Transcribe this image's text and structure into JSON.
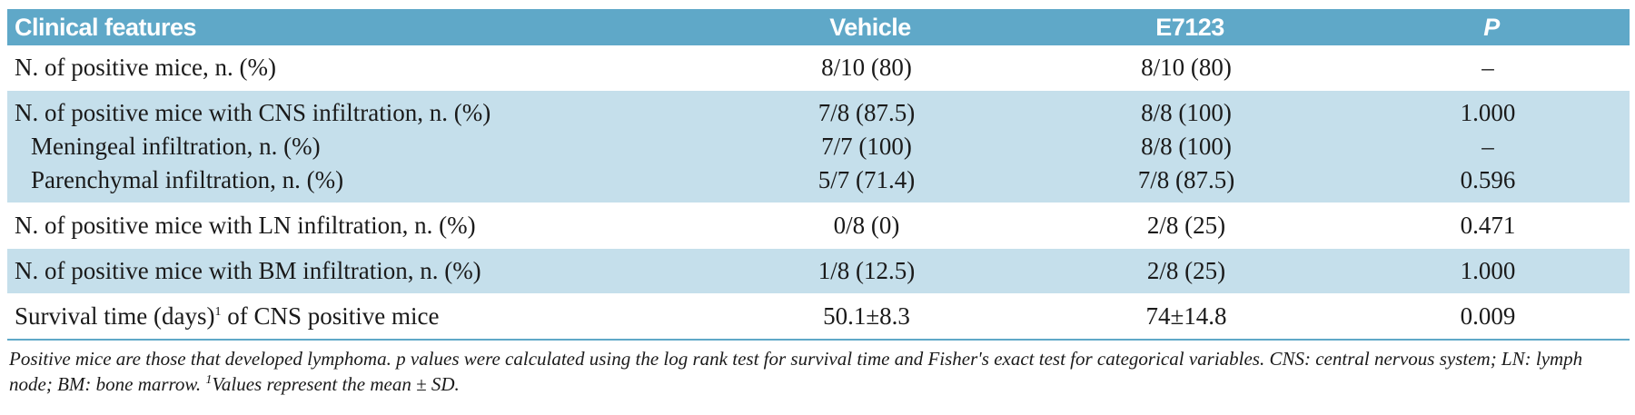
{
  "header": {
    "col1": "Clinical features",
    "col2": "Vehicle",
    "col3": "E7123",
    "col4": "P"
  },
  "rows": [
    {
      "label": "N. of positive mice, n. (%)",
      "vehicle": "8/10 (80)",
      "e7123": "8/10 (80)",
      "p": "–"
    },
    {
      "label": "N. of positive mice with CNS infiltration, n. (%)",
      "vehicle": "7/8 (87.5)",
      "e7123": "8/8 (100)",
      "p": "1.000"
    },
    {
      "label": "Meningeal infiltration, n. (%)",
      "vehicle": "7/7 (100)",
      "e7123": "8/8 (100)",
      "p": "–"
    },
    {
      "label": "Parenchymal infiltration, n. (%)",
      "vehicle": "5/7 (71.4)",
      "e7123": "7/8 (87.5)",
      "p": "0.596"
    },
    {
      "label": "N. of positive mice with LN infiltration, n. (%)",
      "vehicle": "0/8 (0)",
      "e7123": "2/8 (25)",
      "p": "0.471"
    },
    {
      "label": "N. of positive mice with BM infiltration, n. (%)",
      "vehicle": "1/8 (12.5)",
      "e7123": "2/8 (25)",
      "p": "1.000"
    },
    {
      "label_a": "Survival time (days)",
      "label_sup": "1",
      "label_b": " of CNS positive mice",
      "vehicle": "50.1±8.3",
      "e7123": "74±14.8",
      "p": "0.009"
    }
  ],
  "footnote": {
    "text_a": "Positive mice are those that developed lymphoma. p values were calculated using the log rank test for survival time and Fisher's exact test for categorical variables. CNS: central nervous system; LN: lymph node; BM: bone marrow. ",
    "sup": "1",
    "text_b": "Values represent the mean ± SD."
  },
  "colors": {
    "header_bg": "#5fa8c8",
    "shade_bg": "#c5dfeb",
    "header_text": "#ffffff"
  }
}
